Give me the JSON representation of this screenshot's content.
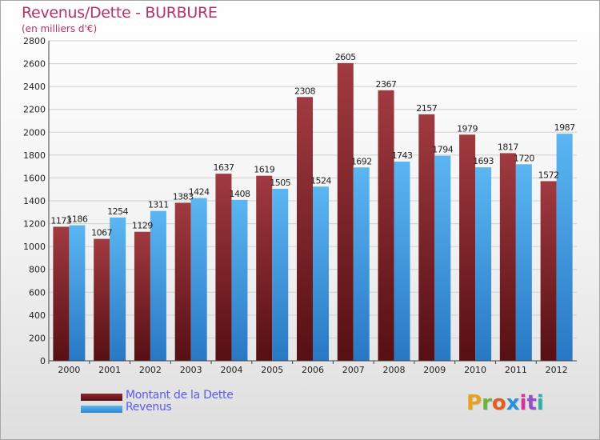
{
  "chart_data": {
    "type": "bar",
    "title": "Revenus/Dette - BURBURE",
    "subtitle": "(en milliers d'€)",
    "categories": [
      "2000",
      "2001",
      "2002",
      "2003",
      "2004",
      "2005",
      "2006",
      "2007",
      "2008",
      "2009",
      "2010",
      "2011",
      "2012"
    ],
    "series": [
      {
        "name": "Montant de la Dette",
        "color": "#7a2228",
        "values": [
          1173,
          1067,
          1129,
          1383,
          1637,
          1619,
          2308,
          2605,
          2367,
          2157,
          1979,
          1817,
          1572
        ]
      },
      {
        "name": "Revenus",
        "color": "#4aa3e4",
        "values": [
          1186,
          1254,
          1311,
          1424,
          1408,
          1505,
          1524,
          1692,
          1743,
          1794,
          1693,
          1720,
          1987
        ]
      }
    ],
    "ylim": [
      0,
      2800
    ],
    "ytick_step": 200,
    "grid": true,
    "legend_position": "bottom-left"
  },
  "logo": {
    "letters": [
      "P",
      "r",
      "o",
      "x",
      "i",
      "t",
      "i"
    ],
    "colors": [
      "#e8a020",
      "#6cb23a",
      "#e55a1e",
      "#2a8fd6",
      "#d6309a",
      "#9a4fc9",
      "#2bb0a8"
    ]
  }
}
